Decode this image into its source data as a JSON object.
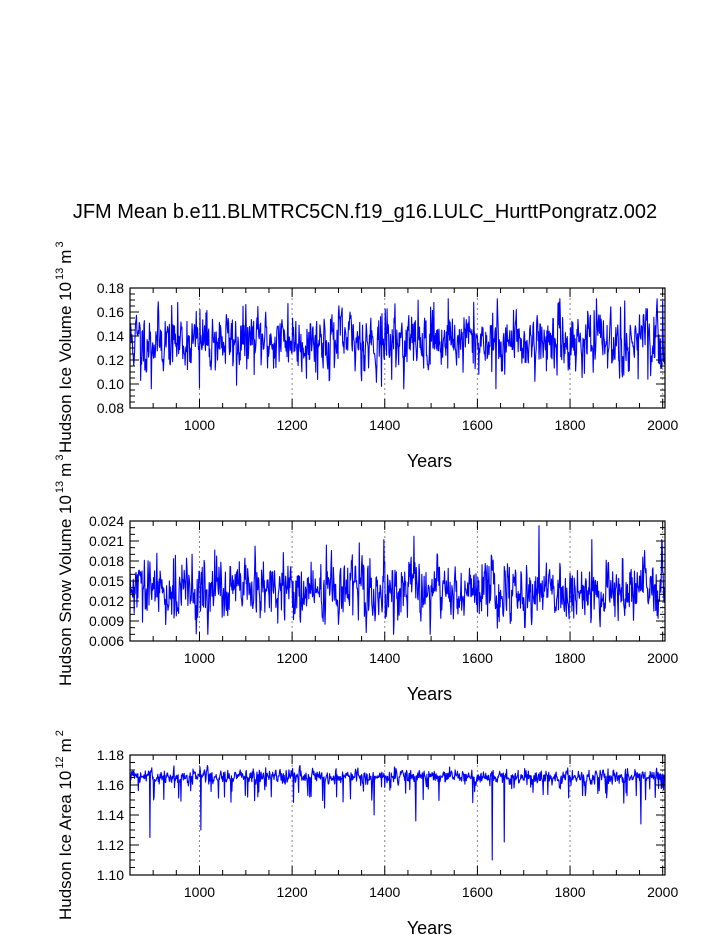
{
  "title": "JFM Mean b.e11.BLMTRC5CN.f19_g16.LULC_HurttPongratz.002",
  "colors": {
    "series": "#0000ff",
    "axis": "#000000",
    "ref": "#888888"
  },
  "chart_data": [
    {
      "type": "line",
      "ylabel": "Hudson Ice Volume",
      "ylabel_scale": "10",
      "ylabel_exp": "13",
      "ylabel_unit": "m",
      "ylabel_unit_exp": "3",
      "xlabel": "Years",
      "xlim": [
        850,
        2005
      ],
      "ylim": [
        0.08,
        0.18
      ],
      "xticks": [
        1000,
        1200,
        1400,
        1600,
        1800,
        2000
      ],
      "xtick_labels": [
        "1000",
        "1200",
        "1400",
        "1600",
        "1800",
        "2000"
      ],
      "yticks": [
        0.08,
        0.1,
        0.12,
        0.14,
        0.16,
        0.18
      ],
      "ytick_labels": [
        "0.08",
        "0.10",
        "0.12",
        "0.14",
        "0.16",
        "0.18"
      ],
      "ref_lines_x": [
        1000,
        1200,
        1400,
        1600,
        1800,
        2000
      ],
      "series": [
        {
          "name": "Hudson Ice Volume",
          "mean": 0.136,
          "spread": 0.012,
          "min": 0.096,
          "max": 0.171,
          "seed": 11,
          "extremes": [
            [
              873,
              0.103
            ],
            [
              896,
              0.096
            ],
            [
              1000,
              0.097
            ],
            [
              1080,
              0.099
            ],
            [
              1191,
              0.167
            ],
            [
              1393,
              0.098
            ],
            [
              1506,
              0.168
            ],
            [
              1537,
              0.171
            ],
            [
              1592,
              0.168
            ],
            [
              1640,
              0.096
            ],
            [
              1909,
              0.164
            ],
            [
              1968,
              0.104
            ],
            [
              2000,
              0.169
            ]
          ]
        }
      ]
    },
    {
      "type": "line",
      "ylabel": "Hudson Snow Volume",
      "ylabel_scale": "10",
      "ylabel_exp": "13",
      "ylabel_unit": "m",
      "ylabel_unit_exp": "3",
      "xlabel": "Years",
      "xlim": [
        850,
        2005
      ],
      "ylim": [
        0.006,
        0.024
      ],
      "xticks": [
        1000,
        1200,
        1400,
        1600,
        1800,
        2000
      ],
      "xtick_labels": [
        "1000",
        "1200",
        "1400",
        "1600",
        "1800",
        "2000"
      ],
      "yticks": [
        0.006,
        0.009,
        0.012,
        0.015,
        0.018,
        0.021,
        0.024
      ],
      "ytick_labels": [
        "0.006",
        "0.009",
        "0.012",
        "0.015",
        "0.018",
        "0.021",
        "0.024"
      ],
      "ref_lines_x": [
        1000,
        1200,
        1400,
        1600,
        1800,
        2000
      ],
      "series": [
        {
          "name": "Hudson Snow Volume",
          "mean": 0.0135,
          "spread": 0.0022,
          "min": 0.007,
          "max": 0.0233,
          "seed": 29,
          "extremes": [
            [
              1018,
              0.007
            ],
            [
              1398,
              0.0212
            ],
            [
              1733,
              0.0233
            ],
            [
              1847,
              0.0212
            ],
            [
              1998,
              0.0212
            ],
            [
              1300,
              0.0085
            ]
          ]
        }
      ]
    },
    {
      "type": "line",
      "ylabel": "Hudson Ice Area",
      "ylabel_scale": "10",
      "ylabel_exp": "12",
      "ylabel_unit": "m",
      "ylabel_unit_exp": "2",
      "xlabel": "Years",
      "xlim": [
        850,
        2005
      ],
      "ylim": [
        1.1,
        1.18
      ],
      "xticks": [
        1000,
        1200,
        1400,
        1600,
        1800,
        2000
      ],
      "xtick_labels": [
        "1000",
        "1200",
        "1400",
        "1600",
        "1800",
        "2000"
      ],
      "yticks": [
        1.1,
        1.12,
        1.14,
        1.16,
        1.18
      ],
      "ytick_labels": [
        "1.10",
        "1.12",
        "1.14",
        "1.16",
        "1.18"
      ],
      "ref_lines_x": [
        1000,
        1200,
        1400,
        1600,
        1800,
        2000
      ],
      "series": [
        {
          "name": "Hudson Ice Area",
          "mean": 1.1655,
          "spread": 0.0028,
          "min": 1.109,
          "max": 1.173,
          "seed": 47,
          "skew_down": true,
          "extremes": [
            [
              893,
              1.125
            ],
            [
              1003,
              1.13
            ],
            [
              1377,
              1.14
            ],
            [
              1467,
              1.136
            ],
            [
              1632,
              1.11
            ],
            [
              1658,
              1.122
            ],
            [
              1953,
              1.134
            ],
            [
              1540,
              1.172
            ],
            [
              1702,
              1.171
            ]
          ]
        }
      ]
    }
  ]
}
